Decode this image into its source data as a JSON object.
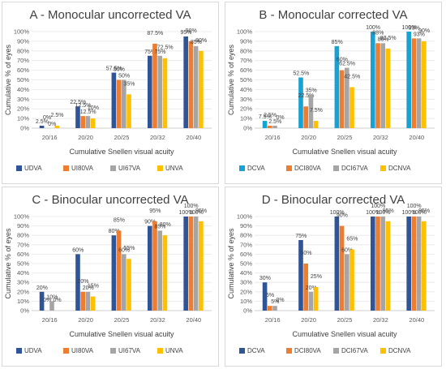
{
  "chart_data": [
    {
      "type": "bar",
      "title": "A - Monocular uncorrected VA",
      "xlabel": "Cumulative Snellen visual acuity",
      "ylabel": "Cumulative % of eyes",
      "ylim": [
        0,
        100
      ],
      "yticks": [
        "0%",
        "10%",
        "20%",
        "30%",
        "40%",
        "50%",
        "60%",
        "70%",
        "80%",
        "90%",
        "100%"
      ],
      "grid": true,
      "legend": "bottom",
      "categories": [
        "20/16",
        "20/20",
        "20/25",
        "20/32",
        "20/40"
      ],
      "series": [
        {
          "name": "UDVA",
          "color": "#2f5597",
          "values": [
            2.5,
            22.5,
            57.5,
            75,
            95
          ],
          "labels": [
            "2.5%",
            "22.5%",
            "57.5%",
            "75%",
            "95%"
          ]
        },
        {
          "name": "UI80VA",
          "color": "#ed7d31",
          "values": [
            0,
            12.5,
            50,
            87.5,
            90
          ],
          "labels": [
            "0%",
            "12.5%",
            "50%",
            "87.5%",
            "90%"
          ]
        },
        {
          "name": "UI67VA",
          "color": "#a5a5a5",
          "values": [
            0,
            12.5,
            50,
            75,
            85
          ],
          "labels": [
            "0%",
            "12.5%",
            "50%",
            "75%",
            "85%"
          ]
        },
        {
          "name": "UNVA",
          "color": "#ffc000",
          "values": [
            2.5,
            10,
            35,
            72.5,
            80
          ],
          "labels": [
            "2.5%",
            "10%",
            "35%",
            "72.5%",
            "80%"
          ]
        }
      ]
    },
    {
      "type": "bar",
      "title": "B - Monocular corrected VA",
      "xlabel": "Cumulative Snellen visual acuity",
      "ylabel": "Cumulative % of eyes",
      "ylim": [
        0,
        100
      ],
      "yticks": [
        "0%",
        "10%",
        "20%",
        "30%",
        "40%",
        "50%",
        "60%",
        "70%",
        "80%",
        "90%",
        "100%"
      ],
      "grid": true,
      "legend": "bottom",
      "categories": [
        "20/16",
        "20/20",
        "20/25",
        "20/32",
        "20/40"
      ],
      "series": [
        {
          "name": "DCVA",
          "color": "#17a2d4",
          "values": [
            7.5,
            52.5,
            85,
            100,
            100
          ],
          "labels": [
            "7.5%",
            "52.5%",
            "85%",
            "100%",
            "100%"
          ]
        },
        {
          "name": "DCI80VA",
          "color": "#ed7d31",
          "values": [
            2.5,
            22.5,
            60,
            88,
            93
          ],
          "labels": [
            "2.5%",
            "22.5%",
            "60%",
            "88%",
            "93%"
          ]
        },
        {
          "name": "DCI67VA",
          "color": "#a5a5a5",
          "values": [
            2.5,
            35,
            62.5,
            88,
            93
          ],
          "labels": [
            "2.5%",
            "35%",
            "62.5%",
            "88%",
            "93%"
          ]
        },
        {
          "name": "DCNVA",
          "color": "#ffc000",
          "values": [
            0,
            7.5,
            42.5,
            82.5,
            90
          ],
          "labels": [
            "0%",
            "7.5%",
            "42.5%",
            "82.5%",
            "90%"
          ]
        }
      ]
    },
    {
      "type": "bar",
      "title": "C - Binocular uncorrected VA",
      "xlabel": "Cumulative Snellen visual acuity",
      "ylabel": "Cumulative % of eyes",
      "ylim": [
        0,
        100
      ],
      "yticks": [
        "0%",
        "10%",
        "20%",
        "30%",
        "40%",
        "50%",
        "60%",
        "70%",
        "80%",
        "90%",
        "100%"
      ],
      "grid": true,
      "legend": "bottom",
      "categories": [
        "20/16",
        "20/20",
        "20/25",
        "20/32",
        "20/40"
      ],
      "series": [
        {
          "name": "UDVA",
          "color": "#2f5597",
          "values": [
            20,
            60,
            80,
            90,
            100
          ],
          "labels": [
            "20%",
            "60%",
            "80%",
            "90%",
            "100%"
          ]
        },
        {
          "name": "UI80VA",
          "color": "#ed7d31",
          "values": [
            0,
            20,
            85,
            95,
            100
          ],
          "labels": [
            "0%",
            "20%",
            "85%",
            "95%",
            "100%"
          ]
        },
        {
          "name": "UI67VA",
          "color": "#a5a5a5",
          "values": [
            10,
            20,
            60,
            85,
            100
          ],
          "labels": [
            "10%",
            "20%",
            "60%",
            "85%",
            "100%"
          ]
        },
        {
          "name": "UNVA",
          "color": "#ffc000",
          "values": [
            0,
            15,
            55,
            80,
            95
          ],
          "labels": [
            "0%",
            "15%",
            "55%",
            "80%",
            "95%"
          ]
        }
      ]
    },
    {
      "type": "bar",
      "title": "D - Binocular corrected VA",
      "xlabel": "Cumulative Snellen visual acuity",
      "ylabel": "Cumulative % of eyes",
      "ylim": [
        0,
        100
      ],
      "yticks": [
        "0%",
        "10%",
        "20%",
        "30%",
        "40%",
        "50%",
        "60%",
        "70%",
        "80%",
        "90%",
        "100%"
      ],
      "grid": true,
      "legend": "bottom",
      "categories": [
        "20/16",
        "20/20",
        "20/25",
        "20/32",
        "20/40"
      ],
      "series": [
        {
          "name": "DCVA",
          "color": "#2f5597",
          "values": [
            30,
            75,
            100,
            100,
            100
          ],
          "labels": [
            "30%",
            "75%",
            "100%",
            "100%",
            "100%"
          ]
        },
        {
          "name": "DCI80VA",
          "color": "#ed7d31",
          "values": [
            5,
            50,
            90,
            100,
            100
          ],
          "labels": [
            "5%",
            "50%",
            "90%",
            "100%",
            "100%"
          ]
        },
        {
          "name": "DCI67VA",
          "color": "#a5a5a5",
          "values": [
            5,
            20,
            60,
            100,
            100
          ],
          "labels": [
            "5%",
            "20%",
            "60%",
            "100%",
            "100%"
          ]
        },
        {
          "name": "DCNVA",
          "color": "#ffc000",
          "values": [
            0,
            25,
            65,
            95,
            95
          ],
          "labels": [
            "0%",
            "25%",
            "65%",
            "95%",
            "95%"
          ]
        }
      ]
    }
  ]
}
